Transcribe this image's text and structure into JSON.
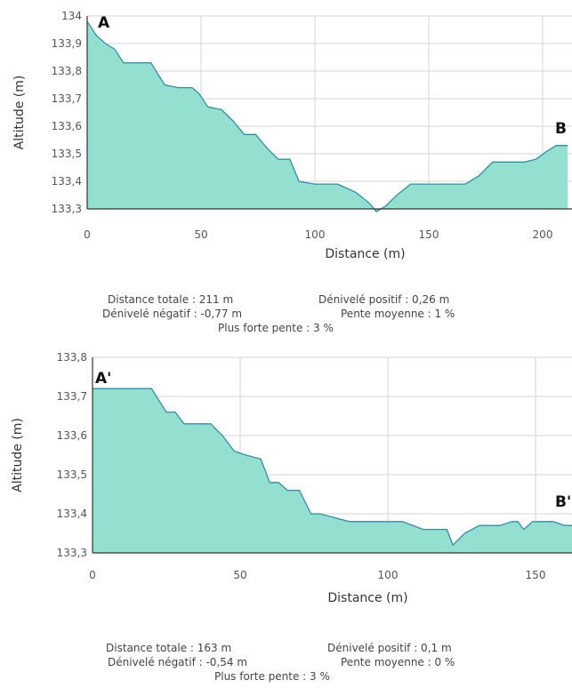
{
  "chart_data": [
    {
      "type": "area",
      "xlabel": "Distance (m)",
      "ylabel": "Altitude (m)",
      "xlim": [
        0,
        211
      ],
      "ylim": [
        133.3,
        134
      ],
      "xticks": [
        "0",
        "50",
        "100",
        "150",
        "200"
      ],
      "yticks": [
        "133,3",
        "133,4",
        "133,5",
        "133,6",
        "133,7",
        "133,8",
        "133,9",
        "134"
      ],
      "start_label": "A",
      "end_label": "B",
      "grid": true,
      "fill_color": "#93e0d1",
      "line_color": "#2f8fa8",
      "series": [
        {
          "x": [
            0,
            4,
            8,
            12,
            16,
            22,
            28,
            34,
            40,
            46,
            49,
            53,
            59,
            64,
            69,
            74,
            79,
            84,
            89,
            93,
            100,
            110,
            118,
            124,
            127,
            131,
            136,
            142,
            150,
            160,
            166,
            172,
            178,
            185,
            192,
            197,
            202,
            206,
            211
          ],
          "y": [
            133.98,
            133.93,
            133.9,
            133.88,
            133.83,
            133.83,
            133.83,
            133.75,
            133.74,
            133.74,
            133.72,
            133.67,
            133.66,
            133.62,
            133.57,
            133.57,
            133.52,
            133.48,
            133.48,
            133.4,
            133.39,
            133.39,
            133.36,
            133.32,
            133.29,
            133.31,
            133.35,
            133.39,
            133.39,
            133.39,
            133.39,
            133.42,
            133.47,
            133.47,
            133.47,
            133.48,
            133.51,
            133.53,
            133.53
          ]
        }
      ]
    },
    {
      "type": "area",
      "xlabel": "Distance (m)",
      "ylabel": "Altitude (m)",
      "xlim": [
        0,
        163
      ],
      "ylim": [
        133.3,
        133.8
      ],
      "xticks": [
        "0",
        "50",
        "100",
        "150"
      ],
      "yticks": [
        "133,3",
        "133,4",
        "133,5",
        "133,6",
        "133,7",
        "133,8"
      ],
      "start_label": "A'",
      "end_label": "B'",
      "grid": true,
      "fill_color": "#93e0d1",
      "line_color": "#2f8fa8",
      "series": [
        {
          "x": [
            0,
            10,
            20,
            25,
            28,
            31,
            40,
            44,
            48,
            52,
            57,
            60,
            63,
            66,
            70,
            74,
            77,
            82,
            87,
            95,
            105,
            112,
            120,
            122,
            126,
            131,
            138,
            142,
            144,
            146,
            149,
            156,
            160,
            163
          ],
          "y": [
            133.72,
            133.72,
            133.72,
            133.66,
            133.66,
            133.63,
            133.63,
            133.6,
            133.56,
            133.55,
            133.54,
            133.48,
            133.48,
            133.46,
            133.46,
            133.4,
            133.4,
            133.39,
            133.38,
            133.38,
            133.38,
            133.36,
            133.36,
            133.32,
            133.35,
            133.37,
            133.37,
            133.38,
            133.38,
            133.36,
            133.38,
            133.38,
            133.37,
            133.37
          ]
        }
      ]
    }
  ],
  "stats": [
    {
      "total_distance": "Distance totale : 211 m",
      "positive_gain": "Dénivelé positif : 0,26 m",
      "negative_gain": "Dénivelé négatif : -0,77 m",
      "average_slope": "Pente moyenne : 1 %",
      "max_slope": "Plus forte pente : 3 %"
    },
    {
      "total_distance": "Distance totale : 163 m",
      "positive_gain": "Dénivelé positif : 0,1 m",
      "negative_gain": "Dénivelé négatif : -0,54 m",
      "average_slope": "Pente moyenne : 0 %",
      "max_slope": "Plus forte pente : 3 %"
    }
  ]
}
